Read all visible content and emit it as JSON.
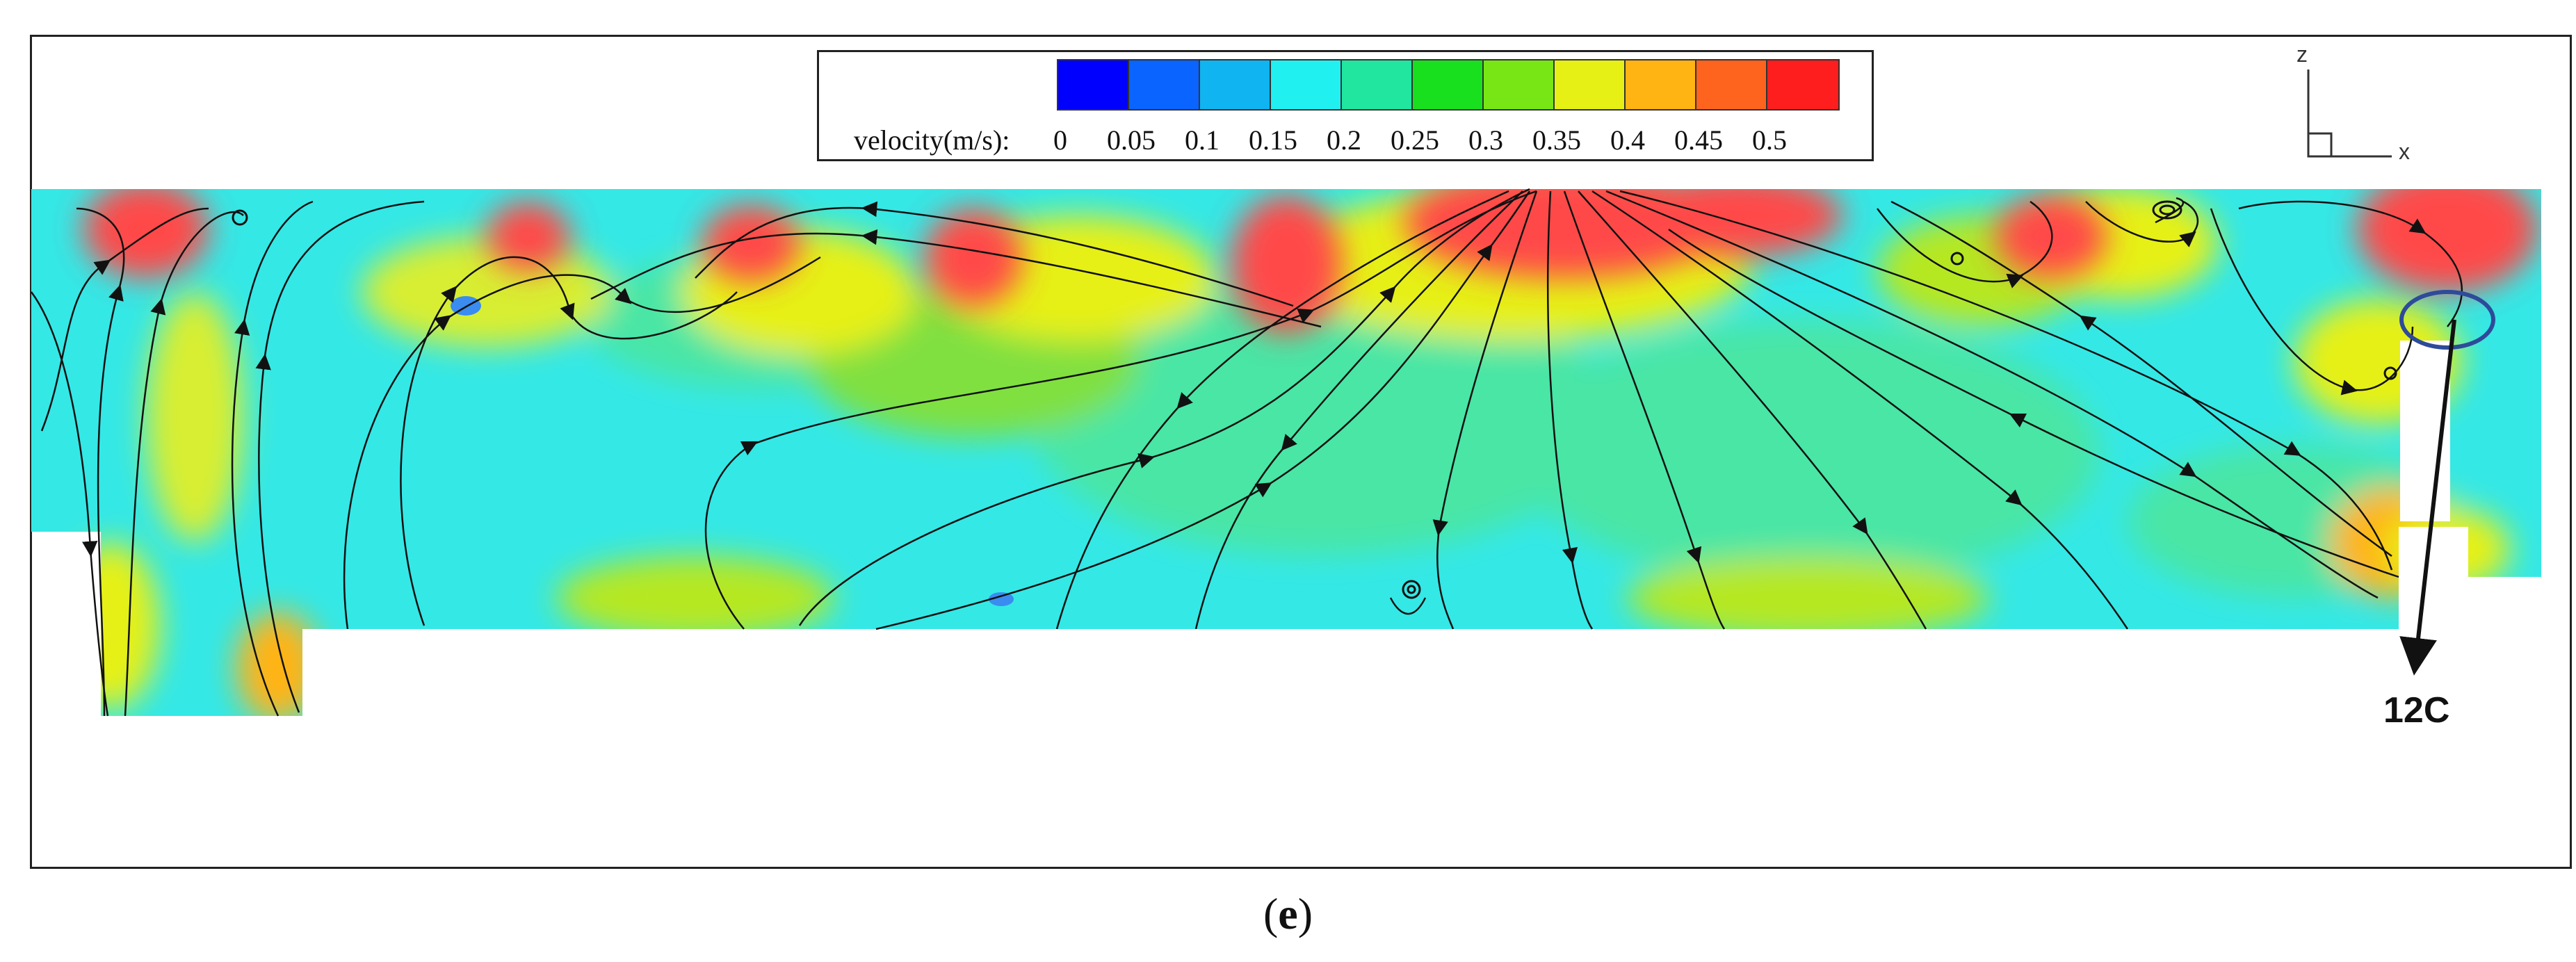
{
  "legend": {
    "title": "velocity(m/s):",
    "ticks": [
      "0",
      "0.05",
      "0.1",
      "0.15",
      "0.2",
      "0.25",
      "0.3",
      "0.35",
      "0.4",
      "0.45",
      "0.5"
    ],
    "colors": [
      "#0000ff",
      "#0a64ff",
      "#10b4f0",
      "#20f0f0",
      "#20e6a0",
      "#18e01e",
      "#78e614",
      "#e6f014",
      "#ffb414",
      "#ff641e",
      "#ff1e1e"
    ]
  },
  "axes": {
    "z": "z",
    "x": "x"
  },
  "callout": {
    "label": "12C",
    "color": "#2e4b9a"
  },
  "panel_label": "e"
}
